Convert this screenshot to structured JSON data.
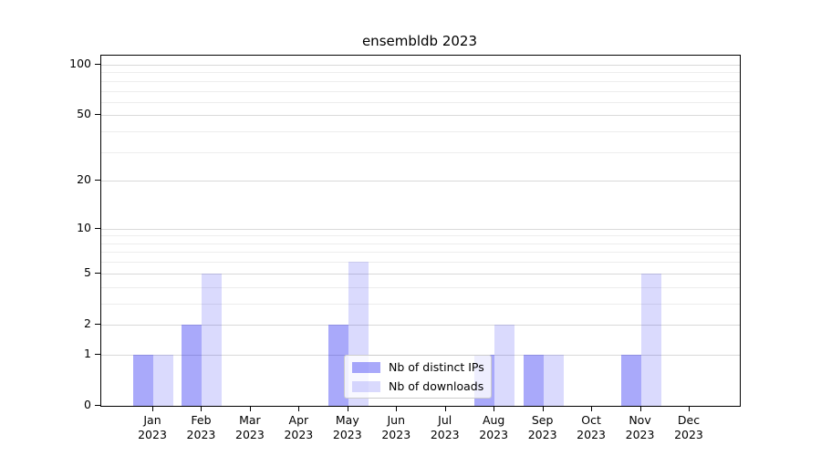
{
  "chart_data": {
    "type": "bar",
    "title": "ensembldb 2023",
    "categories": [
      {
        "month": "Jan",
        "year": "2023"
      },
      {
        "month": "Feb",
        "year": "2023"
      },
      {
        "month": "Mar",
        "year": "2023"
      },
      {
        "month": "Apr",
        "year": "2023"
      },
      {
        "month": "May",
        "year": "2023"
      },
      {
        "month": "Jun",
        "year": "2023"
      },
      {
        "month": "Jul",
        "year": "2023"
      },
      {
        "month": "Aug",
        "year": "2023"
      },
      {
        "month": "Sep",
        "year": "2023"
      },
      {
        "month": "Oct",
        "year": "2023"
      },
      {
        "month": "Nov",
        "year": "2023"
      },
      {
        "month": "Dec",
        "year": "2023"
      }
    ],
    "series": [
      {
        "name": "Nb of distinct IPs",
        "color": "rgba(10,10,240,0.35)",
        "values": [
          1,
          2,
          0,
          0,
          2,
          0,
          0,
          1,
          1,
          0,
          1,
          0
        ]
      },
      {
        "name": "Nb of downloads",
        "color": "rgba(10,10,240,0.15)",
        "values": [
          1,
          5,
          0,
          0,
          6,
          0,
          0,
          2,
          1,
          0,
          5,
          0
        ]
      }
    ],
    "y_axis": {
      "scale": "log1p",
      "lim": [
        0,
        100
      ],
      "ticks": [
        0,
        1,
        2,
        5,
        10,
        20,
        50,
        100
      ],
      "minor_gridlines": [
        3,
        4,
        6,
        7,
        8,
        9,
        30,
        40,
        60,
        70,
        80,
        90
      ]
    },
    "grid": {
      "major_color": "#d9d9d9",
      "minor_color": "#ededed"
    },
    "legend": {
      "position": "inside-lower-center"
    }
  }
}
